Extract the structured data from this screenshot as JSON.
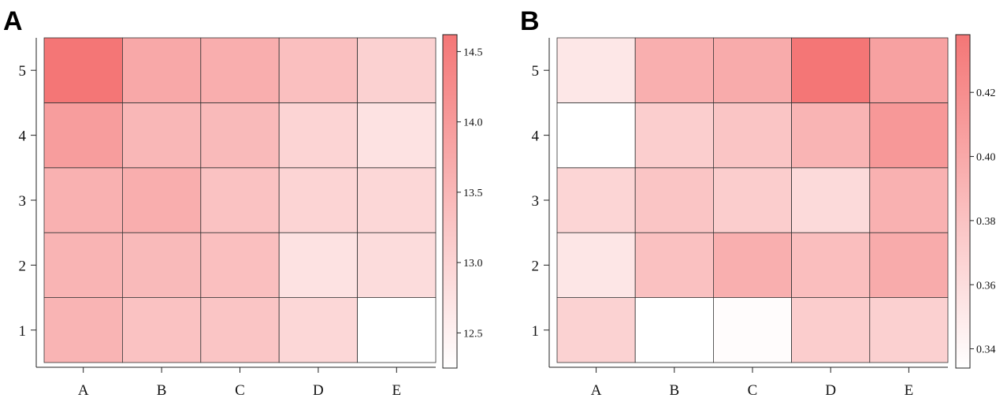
{
  "colors": {
    "low": "#ffffff",
    "high": "#f47676"
  },
  "chart_data": [
    {
      "type": "heatmap",
      "panel_label": "A",
      "x_categories": [
        "A",
        "B",
        "C",
        "D",
        "E"
      ],
      "y_categories": [
        "1",
        "2",
        "3",
        "4",
        "5"
      ],
      "grid": false,
      "colorbar": {
        "min": 12.25,
        "max": 14.62,
        "ticks": [
          12.5,
          13.0,
          13.5,
          14.0,
          14.5
        ],
        "tick_labels": [
          "12.5",
          "13.0",
          "13.5",
          "14.0",
          "14.5"
        ]
      },
      "values": [
        [
          13.55,
          13.3,
          13.25,
          12.95,
          12.25
        ],
        [
          13.55,
          13.45,
          13.35,
          12.75,
          12.85
        ],
        [
          13.6,
          13.65,
          13.3,
          13.0,
          12.95
        ],
        [
          13.95,
          13.5,
          13.45,
          13.0,
          12.75
        ],
        [
          14.62,
          13.75,
          13.65,
          13.35,
          13.05
        ]
      ]
    },
    {
      "type": "heatmap",
      "panel_label": "B",
      "x_categories": [
        "A",
        "B",
        "C",
        "D",
        "E"
      ],
      "y_categories": [
        "1",
        "2",
        "3",
        "4",
        "5"
      ],
      "grid": false,
      "colorbar": {
        "min": 0.334,
        "max": 0.438,
        "ticks": [
          0.34,
          0.36,
          0.38,
          0.4,
          0.42
        ],
        "tick_labels": [
          "0.34",
          "0.36",
          "0.38",
          "0.40",
          "0.42"
        ]
      },
      "values": [
        [
          0.368,
          0.334,
          0.336,
          0.372,
          0.37
        ],
        [
          0.353,
          0.381,
          0.395,
          0.383,
          0.398
        ],
        [
          0.366,
          0.378,
          0.372,
          0.362,
          0.393
        ],
        [
          0.334,
          0.371,
          0.378,
          0.391,
          0.412
        ],
        [
          0.352,
          0.395,
          0.398,
          0.438,
          0.405
        ]
      ]
    }
  ]
}
